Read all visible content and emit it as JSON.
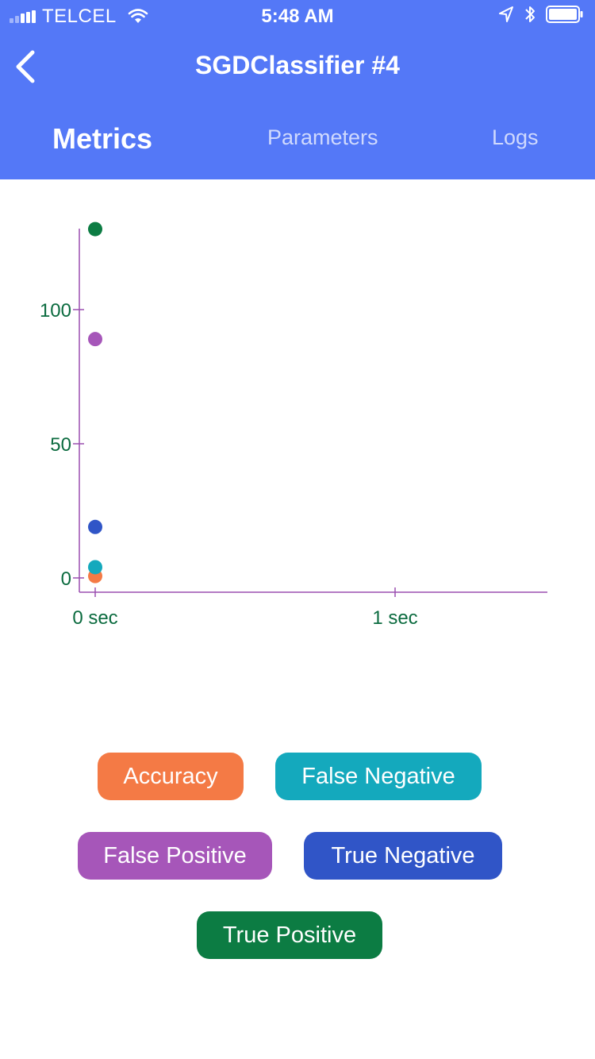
{
  "status_bar": {
    "carrier": "TELCEL",
    "time": "5:48 AM",
    "icons": [
      "signal-icon",
      "wifi-icon",
      "location-arrow-icon",
      "bluetooth-icon",
      "battery-icon"
    ]
  },
  "nav": {
    "back_icon": "chevron-left-icon",
    "title": "SGDClassifier #4"
  },
  "tabs": [
    {
      "label": "Metrics",
      "active": true
    },
    {
      "label": "Parameters",
      "active": false
    },
    {
      "label": "Logs",
      "active": false
    }
  ],
  "colors": {
    "header": "#5478f7",
    "axis": "#9b4fb0",
    "tick_label": "#0b6b3f",
    "accuracy": "#f47a45",
    "false_negative": "#14a9bd",
    "false_positive": "#a656b9",
    "true_negative": "#3055c7",
    "true_positive": "#0c7c43"
  },
  "chart_data": {
    "type": "scatter",
    "x_ticks": [
      {
        "value": 0,
        "label": "0 sec"
      },
      {
        "value": 1,
        "label": "1 sec"
      }
    ],
    "y_ticks": [
      {
        "value": 0,
        "label": "0"
      },
      {
        "value": 50,
        "label": "50"
      },
      {
        "value": 100,
        "label": "100"
      }
    ],
    "xlim": [
      -0.05,
      1.5
    ],
    "ylim": [
      -5,
      130
    ],
    "grid": false,
    "series": [
      {
        "name": "Accuracy",
        "color": "#f47a45",
        "points": [
          {
            "x": 0,
            "y": 0.7
          }
        ]
      },
      {
        "name": "False Negative",
        "color": "#14a9bd",
        "points": [
          {
            "x": 0,
            "y": 4
          }
        ]
      },
      {
        "name": "False Positive",
        "color": "#a656b9",
        "points": [
          {
            "x": 0,
            "y": 89
          }
        ]
      },
      {
        "name": "True Negative",
        "color": "#3055c7",
        "points": [
          {
            "x": 0,
            "y": 19
          }
        ]
      },
      {
        "name": "True Positive",
        "color": "#0c7c43",
        "points": [
          {
            "x": 0,
            "y": 130
          }
        ]
      }
    ]
  },
  "legend": [
    {
      "label": "Accuracy",
      "color": "#f47a45"
    },
    {
      "label": "False Negative",
      "color": "#14a9bd"
    },
    {
      "label": "False Positive",
      "color": "#a656b9"
    },
    {
      "label": "True Negative",
      "color": "#3055c7"
    },
    {
      "label": "True Positive",
      "color": "#0c7c43"
    }
  ]
}
